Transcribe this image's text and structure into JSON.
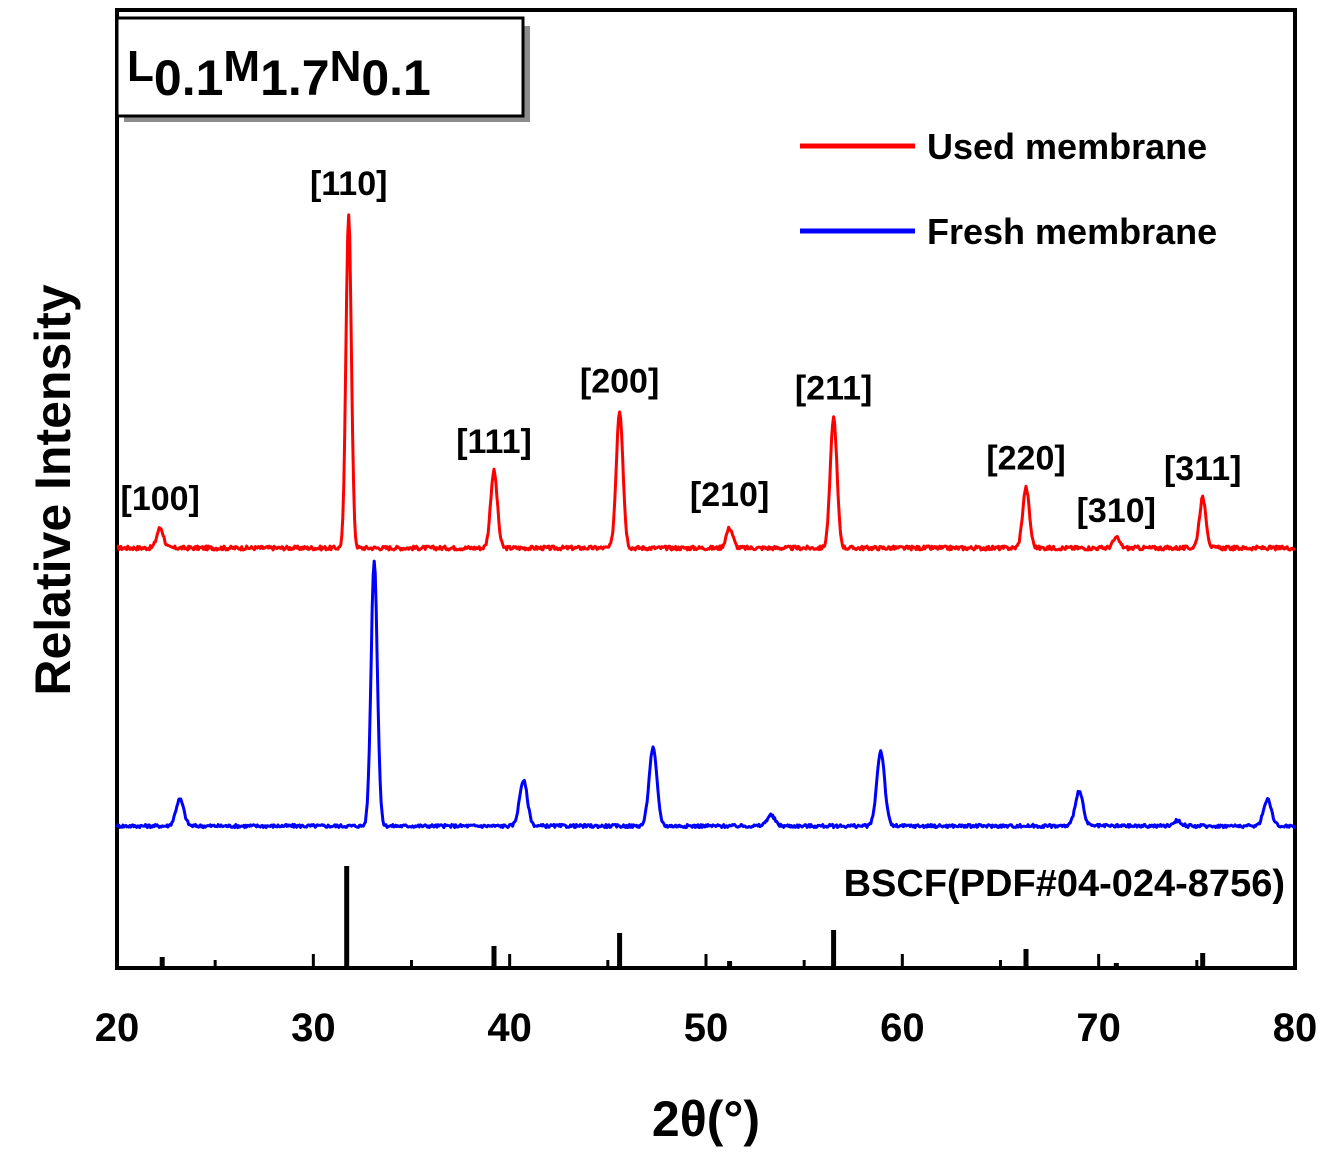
{
  "chart_data": {
    "type": "line",
    "title": "",
    "sample_label": {
      "L": "L",
      "L_sub": "0.1",
      "M": "M",
      "M_sub": "1.7",
      "N": "N",
      "N_sub": "0.1"
    },
    "xlabel": "2θ(°)",
    "ylabel": "Relative Intensity",
    "xlim": [
      20,
      80
    ],
    "x_ticks": [
      20,
      30,
      40,
      50,
      60,
      70,
      80
    ],
    "legend_position": "top-right",
    "grid": false,
    "series": [
      {
        "name": "Used membrane",
        "color": "#ff0000",
        "peaks": [
          {
            "x": 22.2,
            "height": 0.06,
            "label": "[100]"
          },
          {
            "x": 31.8,
            "height": 1.0,
            "label": "[110]"
          },
          {
            "x": 39.2,
            "height": 0.23,
            "label": "[111]"
          },
          {
            "x": 45.6,
            "height": 0.41,
            "label": "[200]"
          },
          {
            "x": 51.2,
            "height": 0.06,
            "label": "[210]"
          },
          {
            "x": 56.5,
            "height": 0.39,
            "label": "[211]"
          },
          {
            "x": 66.3,
            "height": 0.18,
            "label": "[220]"
          },
          {
            "x": 70.9,
            "height": 0.03,
            "label": "[310]"
          },
          {
            "x": 75.3,
            "height": 0.15,
            "label": "[311]"
          }
        ]
      },
      {
        "name": "Fresh membrane",
        "color": "#0000ff",
        "peaks": [
          {
            "x": 23.2,
            "height": 0.1
          },
          {
            "x": 33.1,
            "height": 0.99
          },
          {
            "x": 40.7,
            "height": 0.17
          },
          {
            "x": 47.3,
            "height": 0.29
          },
          {
            "x": 53.3,
            "height": 0.04
          },
          {
            "x": 58.9,
            "height": 0.28
          },
          {
            "x": 69.0,
            "height": 0.13
          },
          {
            "x": 74.0,
            "height": 0.02
          },
          {
            "x": 78.6,
            "height": 0.1
          }
        ]
      }
    ],
    "reference": {
      "label": "BSCF(PDF#04-024-8756)",
      "color": "#000000",
      "lines": [
        {
          "x": 22.3,
          "height": 0.09
        },
        {
          "x": 31.7,
          "height": 1.0
        },
        {
          "x": 39.2,
          "height": 0.2
        },
        {
          "x": 45.6,
          "height": 0.33
        },
        {
          "x": 51.2,
          "height": 0.05
        },
        {
          "x": 56.5,
          "height": 0.36
        },
        {
          "x": 66.3,
          "height": 0.17
        },
        {
          "x": 70.9,
          "height": 0.03
        },
        {
          "x": 75.3,
          "height": 0.13
        }
      ]
    }
  }
}
